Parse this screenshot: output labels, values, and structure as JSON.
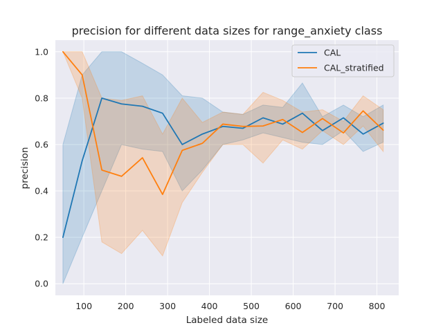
{
  "chart_data": {
    "type": "line",
    "title": "precision for different data sizes for range_anxiety class",
    "xlabel": "Labeled data size",
    "ylabel": "precision",
    "xlim": [
      32,
      852
    ],
    "ylim": [
      -0.05,
      1.05
    ],
    "xticks": [
      100,
      200,
      300,
      400,
      500,
      600,
      700,
      800
    ],
    "yticks": [
      0.0,
      0.2,
      0.4,
      0.6,
      0.8,
      1.0
    ],
    "xtick_labels": [
      "100",
      "200",
      "300",
      "400",
      "500",
      "600",
      "700",
      "800"
    ],
    "ytick_labels": [
      "0.0",
      "0.2",
      "0.4",
      "0.6",
      "0.8",
      "1.0"
    ],
    "grid": true,
    "legend_position": "top-right",
    "x": [
      50,
      96,
      143,
      190,
      240,
      288,
      335,
      383,
      432,
      480,
      528,
      575,
      622,
      670,
      720,
      767,
      815
    ],
    "series": [
      {
        "name": "CAL",
        "color": "#1f77b4",
        "values": [
          0.2,
          0.53,
          0.8,
          0.775,
          0.765,
          0.735,
          0.6,
          0.645,
          0.678,
          0.67,
          0.715,
          0.688,
          0.735,
          0.66,
          0.715,
          0.645,
          0.692
        ],
        "ci_lower": [
          0.0,
          0.2,
          0.4,
          0.6,
          0.58,
          0.57,
          0.4,
          0.49,
          0.6,
          0.62,
          0.65,
          0.63,
          0.61,
          0.6,
          0.66,
          0.57,
          0.61
        ],
        "ci_upper": [
          0.6,
          0.9,
          1.0,
          1.0,
          0.95,
          0.9,
          0.81,
          0.8,
          0.74,
          0.73,
          0.77,
          0.76,
          0.865,
          0.72,
          0.77,
          0.72,
          0.77
        ]
      },
      {
        "name": "CAL_stratified",
        "color": "#ff7f0e",
        "values": [
          1.0,
          0.9,
          0.49,
          0.463,
          0.543,
          0.385,
          0.575,
          0.605,
          0.688,
          0.678,
          0.68,
          0.708,
          0.652,
          0.712,
          0.65,
          0.745,
          0.662
        ],
        "ci_lower": [
          1.0,
          0.8,
          0.18,
          0.13,
          0.23,
          0.12,
          0.35,
          0.48,
          0.6,
          0.6,
          0.52,
          0.62,
          0.58,
          0.66,
          0.6,
          0.68,
          0.57
        ],
        "ci_upper": [
          1.0,
          1.0,
          0.8,
          0.79,
          0.81,
          0.645,
          0.8,
          0.695,
          0.74,
          0.73,
          0.825,
          0.79,
          0.74,
          0.75,
          0.7,
          0.81,
          0.75
        ]
      }
    ]
  }
}
